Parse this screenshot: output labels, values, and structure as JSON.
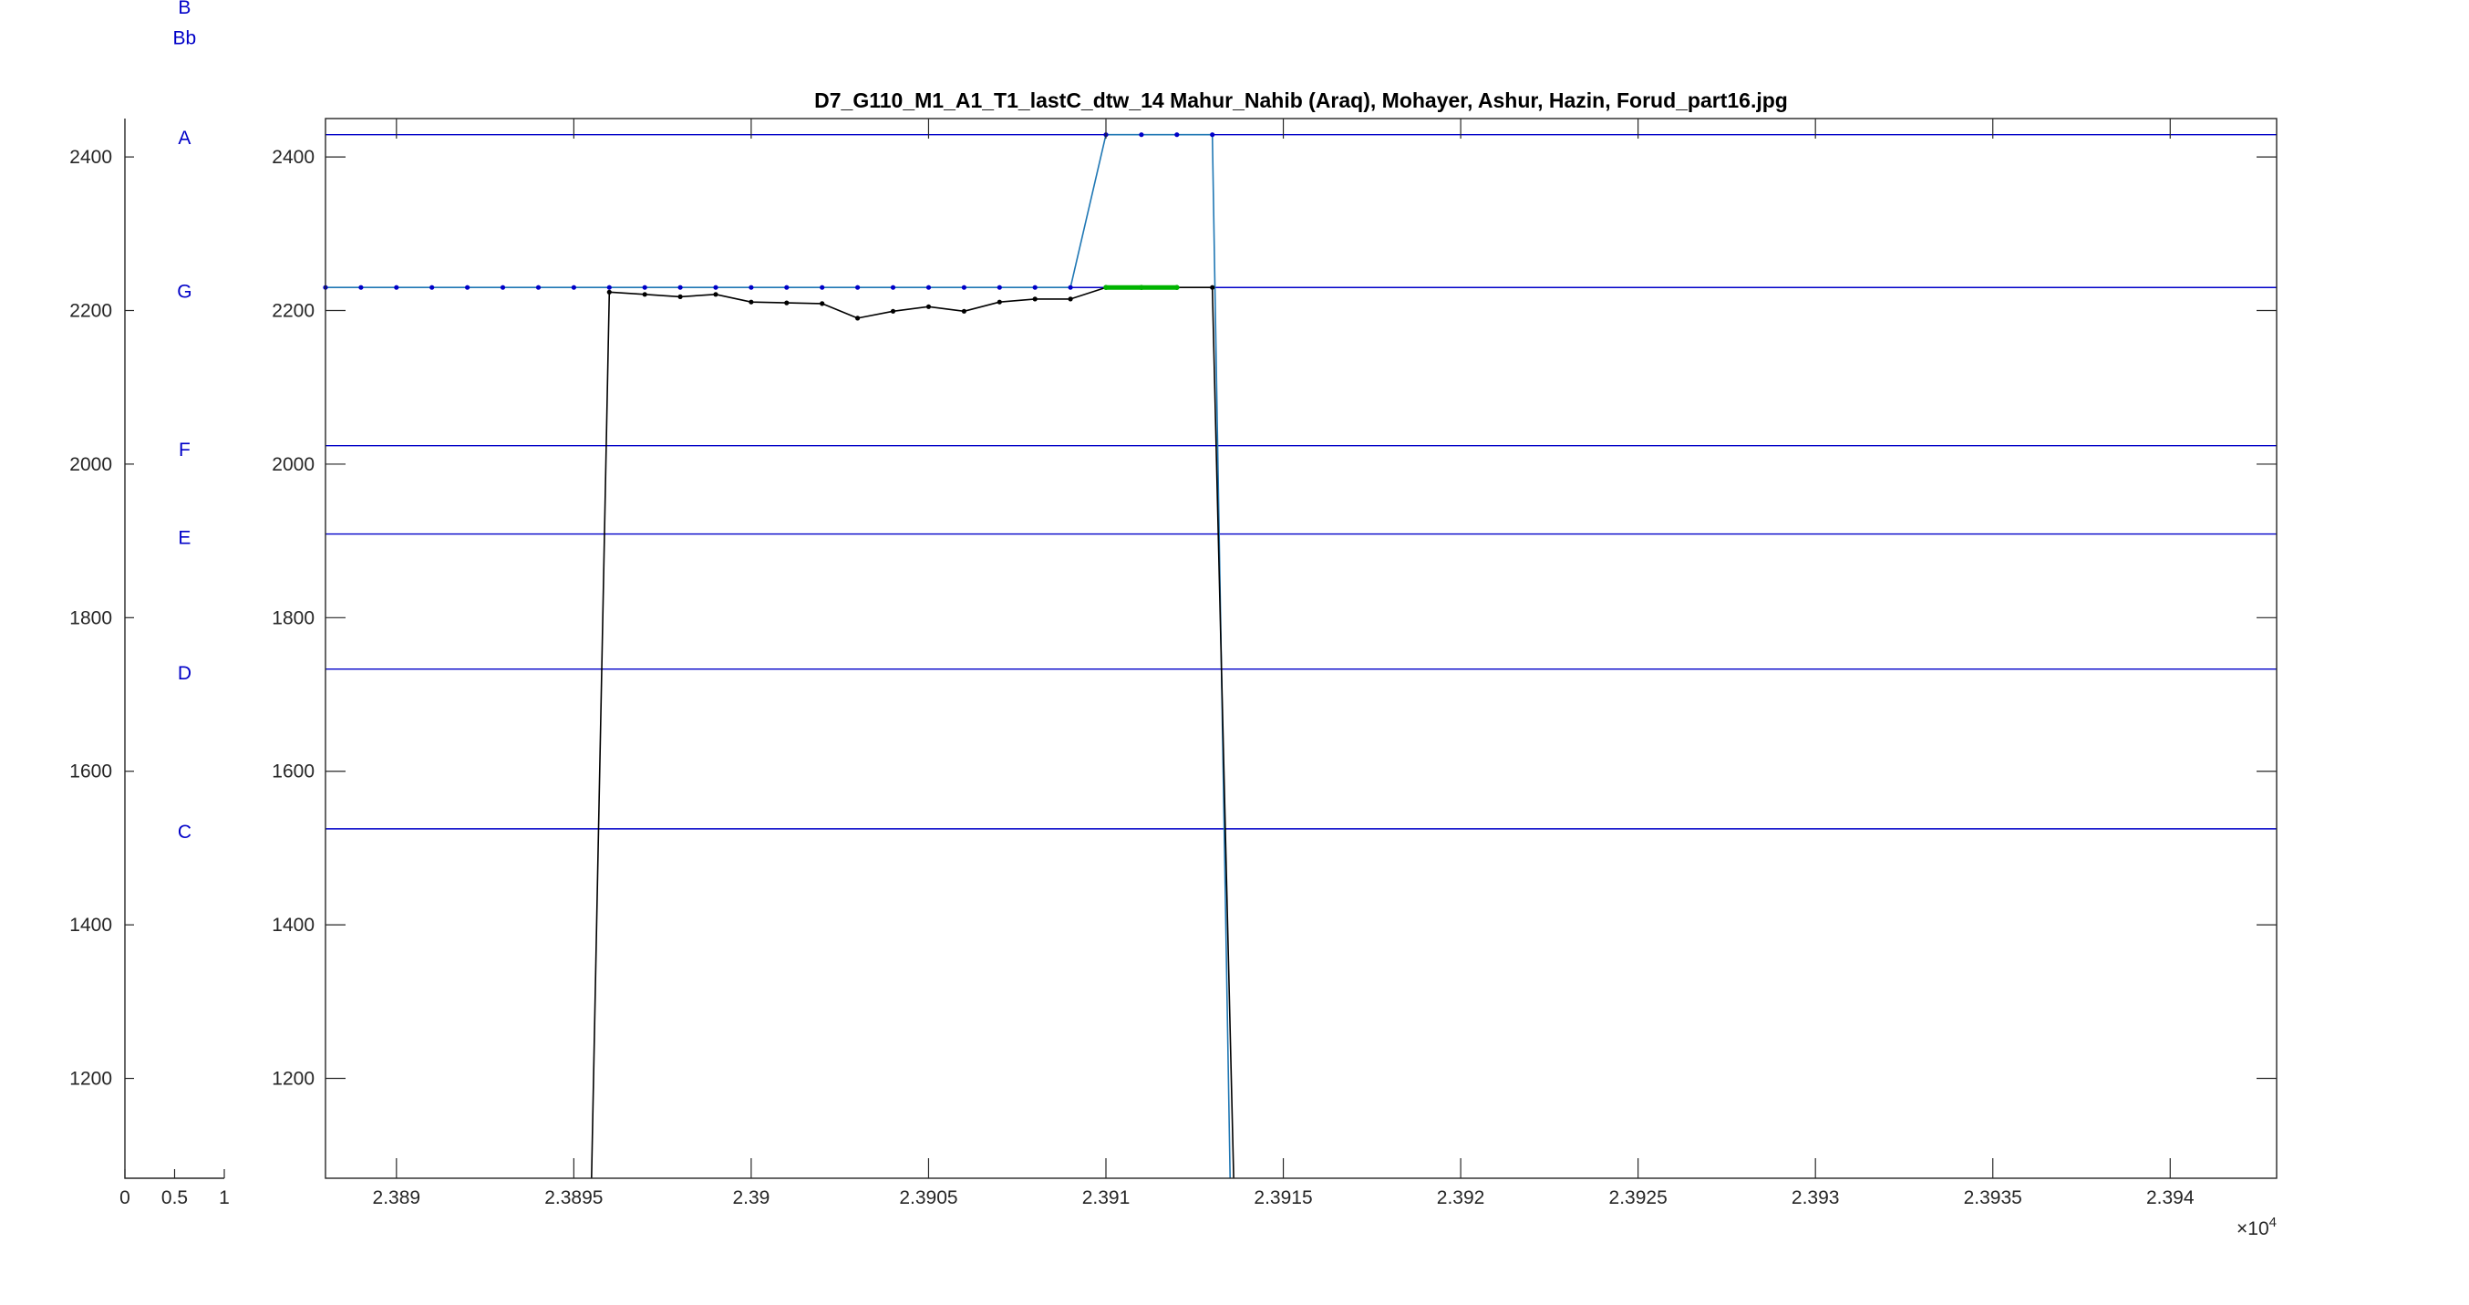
{
  "chart_data": [
    {
      "type": "scatter",
      "id": "notes-axis",
      "xlim": [
        0,
        1
      ],
      "ylim": [
        1070,
        2450
      ],
      "xticks": [
        0,
        0.5,
        1
      ],
      "xtick_labels": [
        "0",
        "0.5",
        "1"
      ],
      "yticks": [
        1200,
        1400,
        1600,
        1800,
        2000,
        2200,
        2400
      ],
      "ytick_labels": [
        "1200",
        "1400",
        "1600",
        "1800",
        "2000",
        "2200",
        "2400"
      ],
      "note_labels": [
        {
          "text": "B",
          "y": 2595
        },
        {
          "text": "Bb",
          "y": 2555
        },
        {
          "text": "A",
          "y": 2425
        },
        {
          "text": "G",
          "y": 2225
        },
        {
          "text": "F",
          "y": 2019
        },
        {
          "text": "E",
          "y": 1904
        },
        {
          "text": "D",
          "y": 1728
        },
        {
          "text": "C",
          "y": 1521
        }
      ],
      "note_x": 0.6,
      "color": "#0000c8"
    },
    {
      "type": "line",
      "id": "main-plot",
      "title": "D7_G110_M1_A1_T1_lastC_dtw_14 Mahur_Nahib (Araq), Mohayer, Ashur, Hazin, Forud_part16.jpg",
      "xlim": [
        23888,
        23943
      ],
      "ylim": [
        1070,
        2450
      ],
      "xticks": [
        23890,
        23895,
        23900,
        23905,
        23910,
        23915,
        23920,
        23925,
        23930,
        23935,
        23940
      ],
      "xtick_labels": [
        "2.389",
        "2.3895",
        "2.39",
        "2.3905",
        "2.391",
        "2.3915",
        "2.392",
        "2.3925",
        "2.393",
        "2.3935",
        "2.394"
      ],
      "x_exponent_label": "×10",
      "x_exponent_power": "4",
      "yticks": [
        1200,
        1400,
        1600,
        1800,
        2000,
        2200,
        2400
      ],
      "ytick_labels": [
        "1200",
        "1400",
        "1600",
        "1800",
        "2000",
        "2200",
        "2400"
      ],
      "reference_lines": [
        {
          "y": 2429,
          "color": "#0000c8"
        },
        {
          "y": 2230,
          "color": "#0000c8"
        },
        {
          "y": 2024,
          "color": "#0000c8"
        },
        {
          "y": 1909,
          "color": "#0000c8"
        },
        {
          "y": 1733,
          "color": "#0000c8"
        },
        {
          "y": 1525,
          "color": "#0000c8"
        }
      ],
      "series": [
        {
          "color": "#1f77b4",
          "marker_color": "#0000c8",
          "x": [
            23888,
            23889,
            23890,
            23891,
            23892,
            23893,
            23894,
            23895,
            23896,
            23897,
            23898,
            23899,
            23900,
            23901,
            23902,
            23903,
            23904,
            23905,
            23906,
            23907,
            23908,
            23909,
            23910,
            23911,
            23912,
            23913,
            23913.5
          ],
          "y": [
            2230,
            2230,
            2230,
            2230,
            2230,
            2230,
            2230,
            2230,
            2230,
            2230,
            2230,
            2230,
            2230,
            2230,
            2230,
            2230,
            2230,
            2230,
            2230,
            2230,
            2230,
            2230,
            2429,
            2429,
            2429,
            2429,
            1070
          ]
        },
        {
          "color": "#000000",
          "marker_color": "#000000",
          "x": [
            23895.5,
            23896,
            23897,
            23898,
            23899,
            23900,
            23901,
            23902,
            23903,
            23904,
            23905,
            23906,
            23907,
            23908,
            23909,
            23910,
            23911,
            23912,
            23913,
            23913.6
          ],
          "y": [
            1070,
            2224,
            2221,
            2218,
            2221,
            2211,
            2210,
            2209,
            2190,
            2199,
            2205,
            2199,
            2211,
            2215,
            2215,
            2230,
            2230,
            2230,
            2230,
            1070
          ]
        },
        {
          "color": "#00b400",
          "marker_color": "#00b400",
          "thick": true,
          "x": [
            23910,
            23911,
            23912
          ],
          "y": [
            2230,
            2230,
            2230
          ]
        }
      ]
    }
  ]
}
